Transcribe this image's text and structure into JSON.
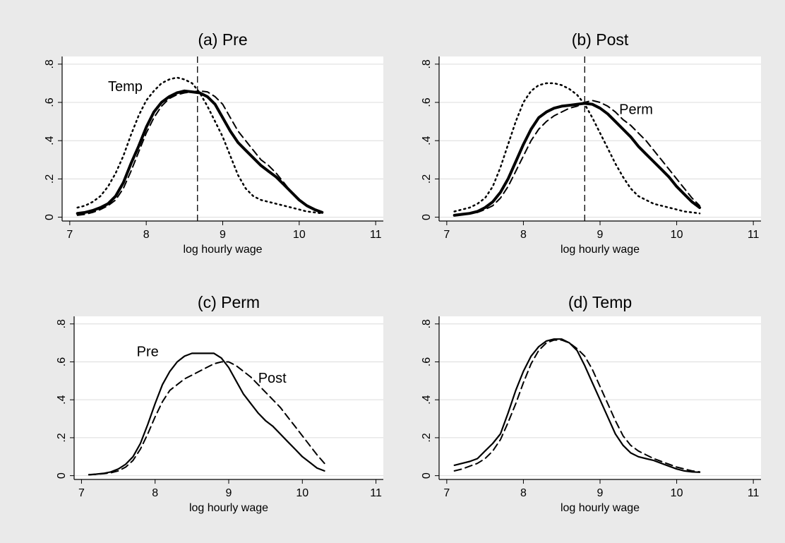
{
  "chart_data": [
    {
      "type": "line",
      "title": "(a) Pre",
      "xlabel": "log hourly wage",
      "ylabel": "",
      "xlim": [
        6.9,
        11.1
      ],
      "ylim": [
        -0.02,
        0.84
      ],
      "xticks": [
        "7",
        "8",
        "9",
        "10",
        "11"
      ],
      "yticks": [
        "0",
        ".2",
        ".4",
        ".6",
        ".8"
      ],
      "grid": true,
      "vline": 8.67,
      "annotations": [
        {
          "text": "Temp",
          "x": 7.5,
          "y": 0.66
        }
      ],
      "series": [
        {
          "style": "thick-solid",
          "x": [
            7.1,
            7.2,
            7.3,
            7.4,
            7.5,
            7.6,
            7.7,
            7.8,
            7.9,
            8.0,
            8.1,
            8.2,
            8.3,
            8.4,
            8.5,
            8.6,
            8.7,
            8.8,
            8.9,
            9.0,
            9.1,
            9.2,
            9.3,
            9.4,
            9.5,
            9.6,
            9.7,
            9.8,
            9.9,
            10.0,
            10.1,
            10.2,
            10.3
          ],
          "values": [
            0.02,
            0.025,
            0.035,
            0.05,
            0.07,
            0.11,
            0.18,
            0.28,
            0.37,
            0.47,
            0.55,
            0.6,
            0.63,
            0.65,
            0.66,
            0.655,
            0.65,
            0.63,
            0.59,
            0.52,
            0.45,
            0.39,
            0.35,
            0.31,
            0.27,
            0.24,
            0.21,
            0.17,
            0.13,
            0.09,
            0.06,
            0.04,
            0.025
          ]
        },
        {
          "style": "dashed",
          "x": [
            7.1,
            7.2,
            7.3,
            7.4,
            7.5,
            7.6,
            7.7,
            7.8,
            7.9,
            8.0,
            8.1,
            8.2,
            8.3,
            8.4,
            8.5,
            8.6,
            8.7,
            8.8,
            8.9,
            9.0,
            9.1,
            9.2,
            9.3,
            9.4,
            9.5,
            9.6,
            9.7,
            9.8,
            9.9,
            10.0,
            10.1,
            10.2,
            10.3
          ],
          "values": [
            0.01,
            0.015,
            0.025,
            0.04,
            0.06,
            0.09,
            0.15,
            0.24,
            0.34,
            0.44,
            0.52,
            0.58,
            0.62,
            0.64,
            0.65,
            0.655,
            0.66,
            0.655,
            0.63,
            0.59,
            0.52,
            0.45,
            0.4,
            0.35,
            0.3,
            0.27,
            0.23,
            0.18,
            0.13,
            0.09,
            0.06,
            0.04,
            0.025
          ]
        },
        {
          "style": "dotted",
          "x": [
            7.1,
            7.2,
            7.3,
            7.4,
            7.5,
            7.6,
            7.7,
            7.8,
            7.9,
            8.0,
            8.1,
            8.2,
            8.3,
            8.4,
            8.5,
            8.6,
            8.7,
            8.8,
            8.9,
            9.0,
            9.1,
            9.2,
            9.3,
            9.4,
            9.5,
            9.6,
            9.7,
            9.8,
            9.9,
            10.0,
            10.1,
            10.2,
            10.3
          ],
          "values": [
            0.05,
            0.06,
            0.08,
            0.11,
            0.16,
            0.23,
            0.32,
            0.43,
            0.53,
            0.61,
            0.66,
            0.7,
            0.72,
            0.73,
            0.72,
            0.7,
            0.65,
            0.58,
            0.5,
            0.42,
            0.32,
            0.22,
            0.15,
            0.11,
            0.09,
            0.08,
            0.07,
            0.06,
            0.05,
            0.04,
            0.03,
            0.025,
            0.02
          ]
        }
      ]
    },
    {
      "type": "line",
      "title": "(b) Post",
      "xlabel": "log hourly wage",
      "ylabel": "",
      "xlim": [
        6.9,
        11.1
      ],
      "ylim": [
        -0.02,
        0.84
      ],
      "xticks": [
        "7",
        "8",
        "9",
        "10",
        "11"
      ],
      "yticks": [
        "0",
        ".2",
        ".4",
        ".6",
        ".8"
      ],
      "grid": true,
      "vline": 8.8,
      "annotations": [
        {
          "text": "Perm",
          "x": 9.25,
          "y": 0.54
        }
      ],
      "series": [
        {
          "style": "thick-solid",
          "x": [
            7.1,
            7.2,
            7.3,
            7.4,
            7.5,
            7.6,
            7.7,
            7.8,
            7.9,
            8.0,
            8.1,
            8.2,
            8.3,
            8.4,
            8.5,
            8.6,
            8.7,
            8.8,
            8.9,
            9.0,
            9.1,
            9.2,
            9.3,
            9.4,
            9.5,
            9.6,
            9.7,
            9.8,
            9.9,
            10.0,
            10.1,
            10.2,
            10.3
          ],
          "values": [
            0.01,
            0.015,
            0.02,
            0.03,
            0.05,
            0.08,
            0.13,
            0.2,
            0.29,
            0.38,
            0.46,
            0.52,
            0.55,
            0.57,
            0.58,
            0.585,
            0.59,
            0.595,
            0.59,
            0.57,
            0.54,
            0.5,
            0.46,
            0.42,
            0.37,
            0.33,
            0.29,
            0.25,
            0.21,
            0.16,
            0.12,
            0.08,
            0.05
          ]
        },
        {
          "style": "dashed",
          "x": [
            7.1,
            7.2,
            7.3,
            7.4,
            7.5,
            7.6,
            7.7,
            7.8,
            7.9,
            8.0,
            8.1,
            8.2,
            8.3,
            8.4,
            8.5,
            8.6,
            8.7,
            8.8,
            8.9,
            9.0,
            9.1,
            9.2,
            9.3,
            9.4,
            9.5,
            9.6,
            9.7,
            9.8,
            9.9,
            10.0,
            10.1,
            10.2,
            10.3
          ],
          "values": [
            0.01,
            0.012,
            0.018,
            0.025,
            0.04,
            0.06,
            0.1,
            0.16,
            0.24,
            0.32,
            0.4,
            0.46,
            0.5,
            0.53,
            0.55,
            0.57,
            0.58,
            0.6,
            0.61,
            0.6,
            0.58,
            0.55,
            0.51,
            0.48,
            0.44,
            0.4,
            0.35,
            0.3,
            0.25,
            0.2,
            0.15,
            0.1,
            0.06
          ]
        },
        {
          "style": "dotted",
          "x": [
            7.1,
            7.2,
            7.3,
            7.4,
            7.5,
            7.6,
            7.7,
            7.8,
            7.9,
            8.0,
            8.1,
            8.2,
            8.3,
            8.4,
            8.5,
            8.6,
            8.7,
            8.8,
            8.9,
            9.0,
            9.1,
            9.2,
            9.3,
            9.4,
            9.5,
            9.6,
            9.7,
            9.8,
            9.9,
            10.0,
            10.1,
            10.2,
            10.3
          ],
          "values": [
            0.03,
            0.04,
            0.05,
            0.07,
            0.1,
            0.16,
            0.26,
            0.38,
            0.5,
            0.6,
            0.66,
            0.69,
            0.7,
            0.7,
            0.69,
            0.67,
            0.64,
            0.59,
            0.52,
            0.44,
            0.36,
            0.28,
            0.21,
            0.15,
            0.11,
            0.09,
            0.07,
            0.06,
            0.05,
            0.04,
            0.03,
            0.025,
            0.02
          ]
        }
      ]
    },
    {
      "type": "line",
      "title": "(c) Perm",
      "xlabel": "log hourly wage",
      "ylabel": "",
      "xlim": [
        6.9,
        11.1
      ],
      "ylim": [
        -0.02,
        0.84
      ],
      "xticks": [
        "7",
        "8",
        "9",
        "10",
        "11"
      ],
      "yticks": [
        "0",
        ".2",
        ".4",
        ".6",
        ".8"
      ],
      "grid": true,
      "annotations": [
        {
          "text": "Pre",
          "x": 7.75,
          "y": 0.63
        },
        {
          "text": "Post",
          "x": 9.4,
          "y": 0.49
        }
      ],
      "series": [
        {
          "style": "solid",
          "x": [
            7.1,
            7.2,
            7.3,
            7.4,
            7.5,
            7.6,
            7.7,
            7.8,
            7.9,
            8.0,
            8.1,
            8.2,
            8.3,
            8.4,
            8.5,
            8.6,
            8.7,
            8.8,
            8.9,
            9.0,
            9.1,
            9.2,
            9.3,
            9.4,
            9.5,
            9.6,
            9.7,
            9.8,
            9.9,
            10.0,
            10.1,
            10.2,
            10.3
          ],
          "values": [
            0.005,
            0.008,
            0.012,
            0.02,
            0.035,
            0.06,
            0.1,
            0.17,
            0.27,
            0.38,
            0.48,
            0.55,
            0.6,
            0.63,
            0.645,
            0.645,
            0.645,
            0.645,
            0.62,
            0.57,
            0.5,
            0.43,
            0.38,
            0.33,
            0.29,
            0.26,
            0.22,
            0.18,
            0.14,
            0.1,
            0.07,
            0.04,
            0.025
          ]
        },
        {
          "style": "dashed",
          "x": [
            7.1,
            7.2,
            7.3,
            7.4,
            7.5,
            7.6,
            7.7,
            7.8,
            7.9,
            8.0,
            8.1,
            8.2,
            8.3,
            8.4,
            8.5,
            8.6,
            8.7,
            8.8,
            8.9,
            9.0,
            9.1,
            9.2,
            9.3,
            9.4,
            9.5,
            9.6,
            9.7,
            9.8,
            9.9,
            10.0,
            10.1,
            10.2,
            10.3
          ],
          "values": [
            0.005,
            0.007,
            0.01,
            0.015,
            0.025,
            0.045,
            0.08,
            0.14,
            0.22,
            0.31,
            0.39,
            0.45,
            0.48,
            0.51,
            0.53,
            0.55,
            0.57,
            0.59,
            0.6,
            0.6,
            0.58,
            0.55,
            0.52,
            0.48,
            0.44,
            0.4,
            0.36,
            0.31,
            0.26,
            0.21,
            0.16,
            0.11,
            0.065
          ]
        }
      ]
    },
    {
      "type": "line",
      "title": "(d) Temp",
      "xlabel": "log hourly wage",
      "ylabel": "",
      "xlim": [
        6.9,
        11.1
      ],
      "ylim": [
        -0.02,
        0.84
      ],
      "xticks": [
        "7",
        "8",
        "9",
        "10",
        "11"
      ],
      "yticks": [
        "0",
        ".2",
        ".4",
        ".6",
        ".8"
      ],
      "grid": true,
      "annotations": [],
      "series": [
        {
          "style": "solid",
          "x": [
            7.1,
            7.2,
            7.3,
            7.4,
            7.5,
            7.6,
            7.7,
            7.8,
            7.9,
            8.0,
            8.1,
            8.2,
            8.3,
            8.4,
            8.5,
            8.6,
            8.7,
            8.8,
            8.9,
            9.0,
            9.1,
            9.2,
            9.3,
            9.4,
            9.5,
            9.6,
            9.7,
            9.8,
            9.9,
            10.0,
            10.1,
            10.2,
            10.3
          ],
          "values": [
            0.055,
            0.065,
            0.075,
            0.09,
            0.13,
            0.17,
            0.22,
            0.33,
            0.45,
            0.55,
            0.63,
            0.68,
            0.71,
            0.72,
            0.72,
            0.7,
            0.66,
            0.58,
            0.49,
            0.4,
            0.31,
            0.22,
            0.16,
            0.12,
            0.1,
            0.09,
            0.08,
            0.065,
            0.05,
            0.035,
            0.025,
            0.02,
            0.018
          ]
        },
        {
          "style": "dashed",
          "x": [
            7.1,
            7.2,
            7.3,
            7.4,
            7.5,
            7.6,
            7.7,
            7.8,
            7.9,
            8.0,
            8.1,
            8.2,
            8.3,
            8.4,
            8.5,
            8.6,
            8.7,
            8.8,
            8.9,
            9.0,
            9.1,
            9.2,
            9.3,
            9.4,
            9.5,
            9.6,
            9.7,
            9.8,
            9.9,
            10.0,
            10.1,
            10.2,
            10.3
          ],
          "values": [
            0.025,
            0.035,
            0.05,
            0.065,
            0.09,
            0.13,
            0.19,
            0.28,
            0.38,
            0.49,
            0.59,
            0.66,
            0.7,
            0.715,
            0.715,
            0.7,
            0.67,
            0.63,
            0.56,
            0.47,
            0.38,
            0.29,
            0.21,
            0.16,
            0.13,
            0.11,
            0.09,
            0.075,
            0.06,
            0.045,
            0.035,
            0.025,
            0.02
          ]
        }
      ]
    }
  ]
}
